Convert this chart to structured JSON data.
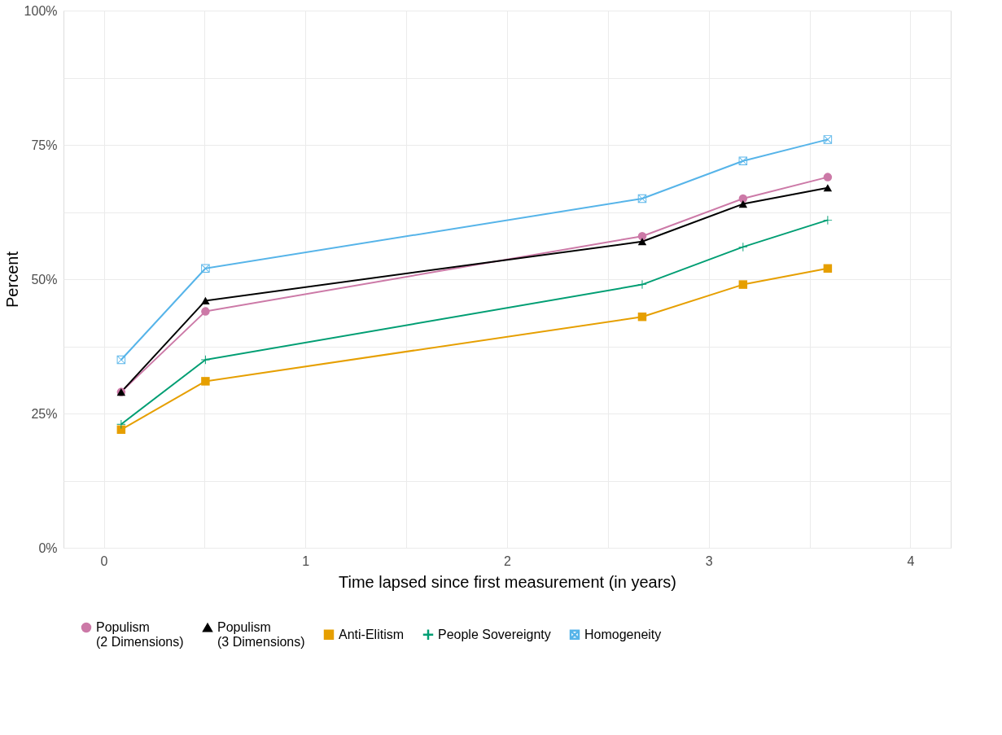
{
  "chart_data": {
    "type": "line",
    "xlabel": "Time lapsed since first measurement (in years)",
    "ylabel": "Percent",
    "x": [
      0.086,
      0.504,
      2.67,
      3.17,
      3.59
    ],
    "series": [
      {
        "name": "Populism\n (2 Dimensions)",
        "color": "#cc79a7",
        "marker": "circle",
        "values": [
          29,
          44,
          58,
          65,
          69
        ]
      },
      {
        "name": "Populism\n (3 Dimensions)",
        "color": "#000000",
        "marker": "triangle",
        "values": [
          29,
          46,
          57,
          64,
          67
        ]
      },
      {
        "name": "Anti-Elitism",
        "color": "#e69f00",
        "marker": "square",
        "values": [
          22,
          31,
          43,
          49,
          52
        ]
      },
      {
        "name": "People Sovereignty",
        "color": "#009e73",
        "marker": "cross",
        "values": [
          23,
          35,
          49,
          56,
          61
        ]
      },
      {
        "name": "Homogeneity",
        "color": "#56b4e9",
        "marker": "square_x",
        "values": [
          35,
          52,
          65,
          72,
          76
        ]
      }
    ],
    "xlim": [
      -0.2,
      4.2
    ],
    "xticks": [
      0,
      {
        "value": 0.5,
        "label": null
      },
      1,
      {
        "value": 1.5,
        "label": null
      },
      2,
      {
        "value": 2.5,
        "label": null
      },
      3,
      {
        "value": 3.5,
        "label": null
      },
      4
    ],
    "ylim": [
      0,
      100
    ],
    "yticks": [
      {
        "value": 0,
        "label": "0%"
      },
      {
        "value": 12.5,
        "label": null
      },
      {
        "value": 25,
        "label": "25%"
      },
      {
        "value": 37.5,
        "label": null
      },
      {
        "value": 50,
        "label": "50%"
      },
      {
        "value": 62.5,
        "label": null
      },
      {
        "value": 75,
        "label": "75%"
      },
      {
        "value": 87.5,
        "label": null
      },
      {
        "value": 100,
        "label": "100%"
      }
    ],
    "grid": true,
    "legend": "bottom",
    "line_style": "solid"
  }
}
